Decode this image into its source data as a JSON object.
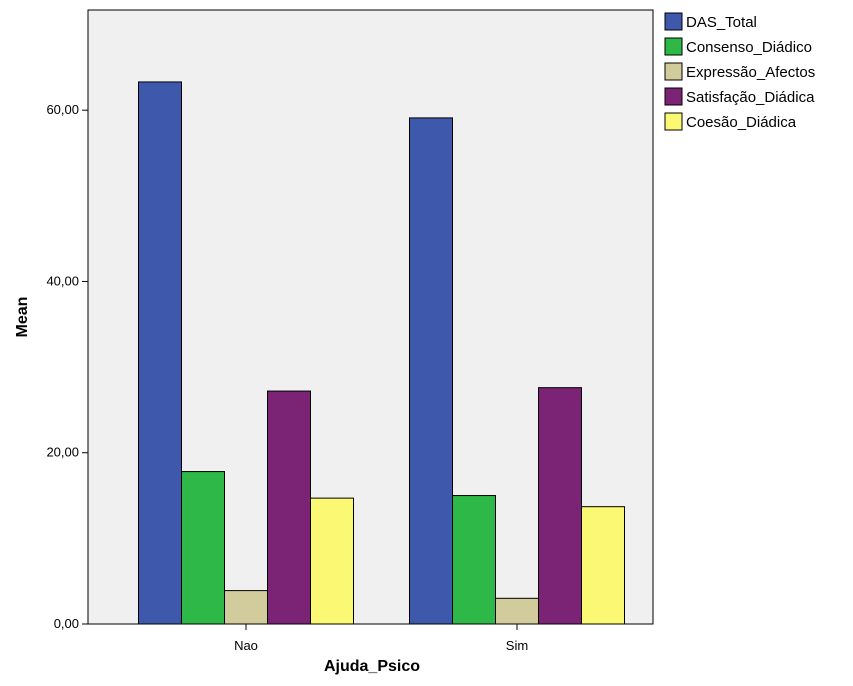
{
  "chart_data": {
    "type": "bar",
    "title": "",
    "xlabel": "Ajuda_Psico",
    "ylabel": "Mean",
    "categories": [
      "Nao",
      "Sim"
    ],
    "series": [
      {
        "name": "DAS_Total",
        "color": "#3e58ac",
        "values": [
          63.3,
          59.1
        ]
      },
      {
        "name": "Consenso_Diádico",
        "color": "#2eb848",
        "values": [
          17.8,
          15.0
        ]
      },
      {
        "name": "Expressão_Afectos",
        "color": "#d2cc9c",
        "values": [
          3.9,
          3.0
        ]
      },
      {
        "name": "Satisfação_Diádica",
        "color": "#7b2476",
        "values": [
          27.2,
          27.6
        ]
      },
      {
        "name": "Coesão_Diádica",
        "color": "#fbf873",
        "values": [
          14.7,
          13.7
        ]
      }
    ],
    "yticks": [
      0,
      20,
      40,
      60
    ],
    "ytick_labels": [
      "0,00",
      "20,00",
      "40,00",
      "60,00"
    ],
    "ylim": [
      0,
      71.7
    ],
    "grid": false,
    "legend_position": "right-top"
  }
}
